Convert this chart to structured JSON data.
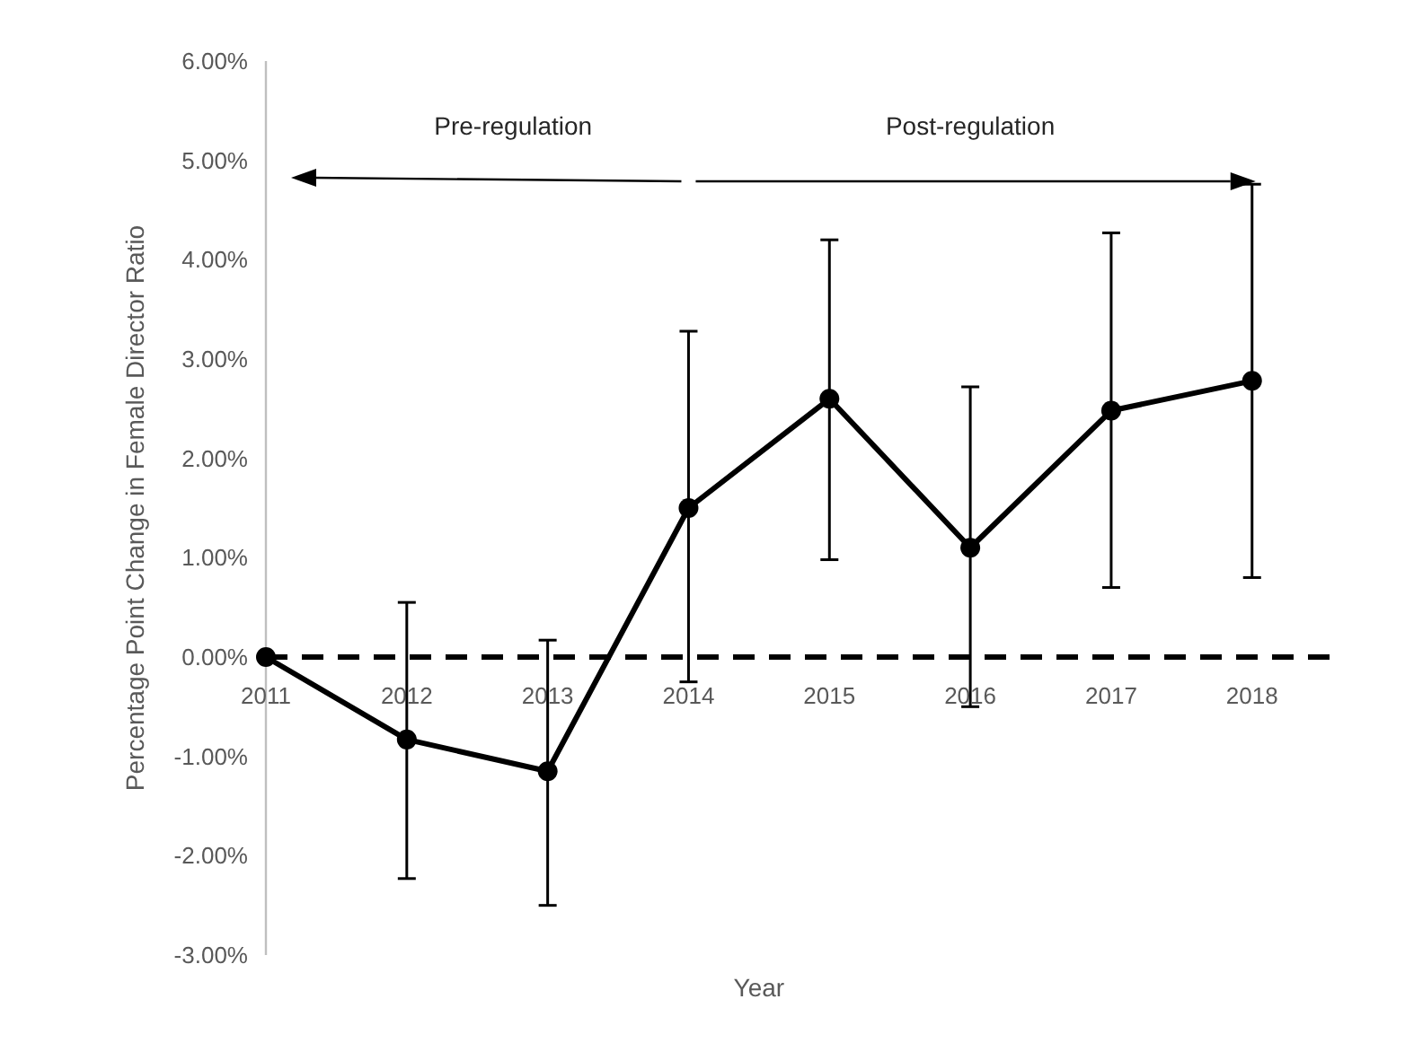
{
  "chart_data": {
    "type": "line",
    "xlabel": "Year",
    "ylabel": "Percentage Point Change in Female Director Ratio",
    "categories": [
      "2011",
      "2012",
      "2013",
      "2014",
      "2015",
      "2016",
      "2017",
      "2018"
    ],
    "series": [
      {
        "color": "#000000",
        "values": [
          0,
          -0.83,
          -1.15,
          1.5,
          2.6,
          1.1,
          2.48,
          2.78
        ],
        "errors": [
          null,
          [
            -2.23,
            0.55
          ],
          [
            -2.5,
            0.17
          ],
          [
            -0.25,
            3.28
          ],
          [
            0.98,
            4.2
          ],
          [
            -0.5,
            2.72
          ],
          [
            0.7,
            4.27
          ],
          [
            0.8,
            4.76
          ]
        ]
      }
    ],
    "ylim": [
      -3,
      6
    ],
    "yticks": [
      {
        "value": -3,
        "label": "-3.00%"
      },
      {
        "value": -2,
        "label": "-2.00%"
      },
      {
        "value": -1,
        "label": "-1.00%"
      },
      {
        "value": 0,
        "label": "0.00%"
      },
      {
        "value": 1,
        "label": "1.00%"
      },
      {
        "value": 2,
        "label": "2.00%"
      },
      {
        "value": 3,
        "label": "3.00%"
      },
      {
        "value": 4,
        "label": "4.00%"
      },
      {
        "value": 5,
        "label": "5.00%"
      },
      {
        "value": 6,
        "label": "6.00%"
      }
    ],
    "ref_lines": [
      {
        "axis": "y",
        "value": 0,
        "color": "#000000",
        "line_style": "dashed"
      }
    ],
    "annotations": [
      "Pre-regulation",
      "Post-regulation"
    ],
    "marker": "circle",
    "line_style": "solid",
    "grid": false
  }
}
